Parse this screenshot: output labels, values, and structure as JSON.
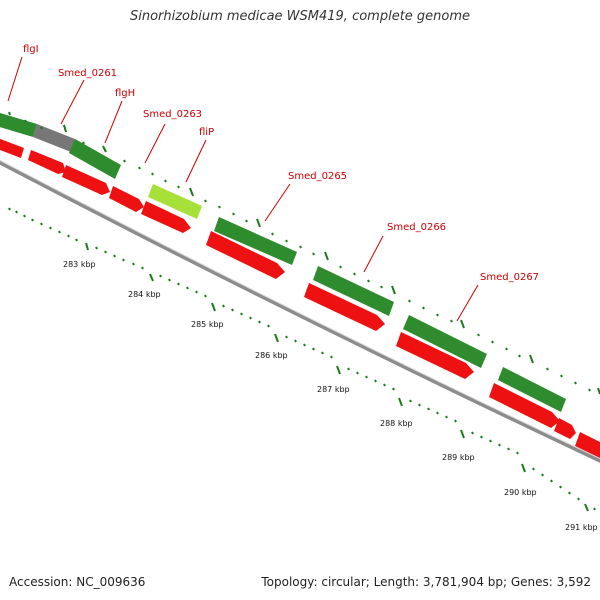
{
  "title": "Sinorhizobium medicae WSM419, complete genome",
  "accession_text": "Accession: NC_009636",
  "summary_text": "Topology: circular; Length: 3,781,904 bp; Genes: 3,592",
  "colors": {
    "forward_gene": "#2e8b2e",
    "selected_gene": "#a8e03a",
    "pseudo_gene": "#777777",
    "cds": "#ee1111",
    "backbone": "#8c8c8c",
    "tick": "#1a7a1a",
    "label": "#cc0000"
  },
  "gene_labels": [
    {
      "id": "flgI",
      "text": "flgI"
    },
    {
      "id": "smed0261",
      "text": "Smed_0261"
    },
    {
      "id": "flgH",
      "text": "flgH"
    },
    {
      "id": "smed0263",
      "text": "Smed_0263"
    },
    {
      "id": "fliP",
      "text": "fliP"
    },
    {
      "id": "smed0265",
      "text": "Smed_0265"
    },
    {
      "id": "smed0266",
      "text": "Smed_0266"
    },
    {
      "id": "smed0267",
      "text": "Smed_0267"
    }
  ],
  "scale_labels": [
    "283 kbp",
    "284 kbp",
    "285 kbp",
    "286 kbp",
    "287 kbp",
    "288 kbp",
    "289 kbp",
    "290 kbp",
    "291 kbp"
  ]
}
